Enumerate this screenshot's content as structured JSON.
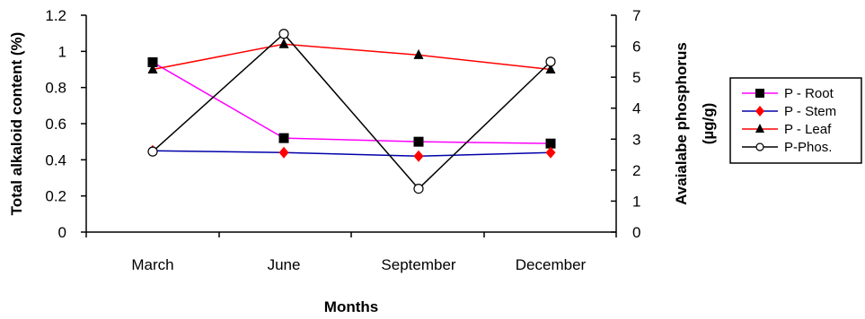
{
  "chart_data": {
    "type": "line",
    "categories": [
      "March",
      "June",
      "September",
      "December"
    ],
    "xlabel": "Months",
    "ylabel_left": "Total alkaloid content (%)",
    "ylabel_right_line1": "Avaialabe phosphorus",
    "ylabel_right_line2": "(µg/g)",
    "ylim_left": [
      0,
      1.2
    ],
    "yticks_left": [
      "0",
      "0.2",
      "0.4",
      "0.6",
      "0.8",
      "1",
      "1.2"
    ],
    "ylim_right": [
      0,
      7
    ],
    "yticks_right": [
      "0",
      "1",
      "2",
      "3",
      "4",
      "5",
      "6",
      "7"
    ],
    "legend_position": "right",
    "grid": false,
    "series": [
      {
        "name": "P - Root",
        "axis": "left",
        "color": "#ff00ff",
        "marker": "square",
        "marker_color": "#000000",
        "values": [
          0.94,
          0.52,
          0.5,
          0.49
        ]
      },
      {
        "name": "P - Stem",
        "axis": "left",
        "color": "#0000aa",
        "marker": "diamond",
        "marker_color": "#ff0000",
        "values": [
          0.45,
          0.44,
          0.42,
          0.44
        ]
      },
      {
        "name": "P - Leaf",
        "axis": "left",
        "color": "#ff0000",
        "marker": "triangle",
        "marker_color": "#000000",
        "values": [
          0.9,
          1.04,
          0.98,
          0.9
        ]
      },
      {
        "name": "P-Phos.",
        "axis": "right",
        "color": "#000000",
        "marker": "circle",
        "marker_color": "#000000",
        "values": [
          2.6,
          6.4,
          1.4,
          5.5
        ]
      }
    ]
  }
}
